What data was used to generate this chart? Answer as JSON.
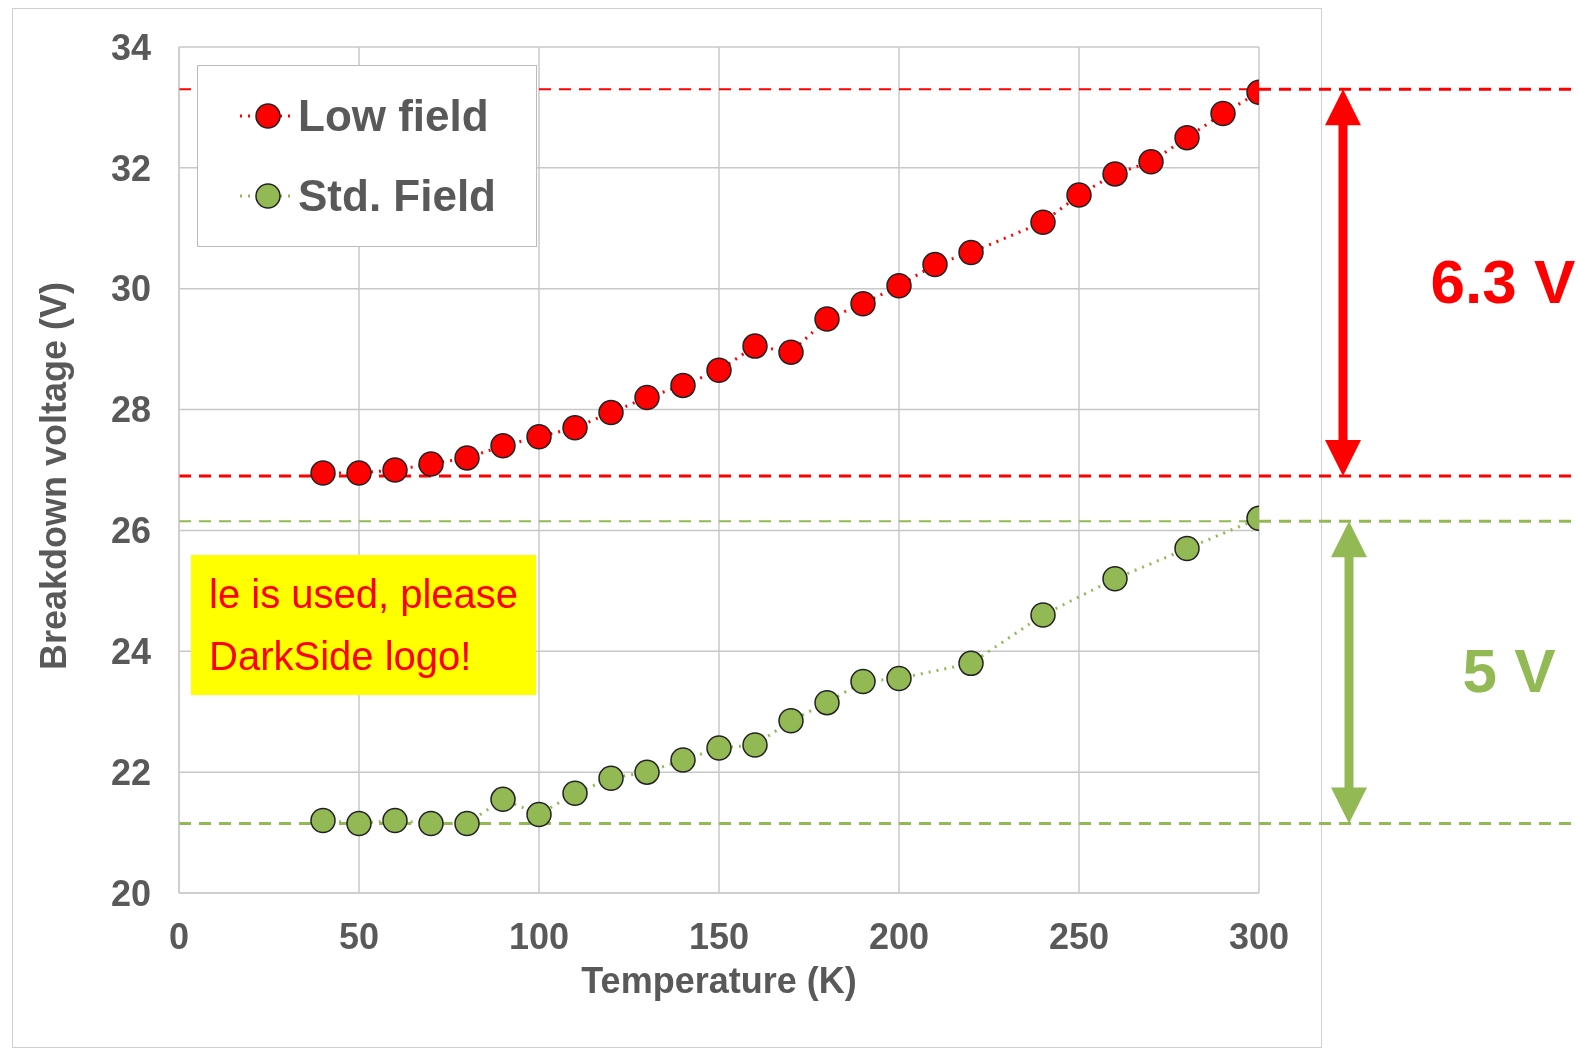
{
  "chart_data": {
    "type": "line",
    "xlabel": "Temperature (K)",
    "ylabel": "Breakdown voltage (V)",
    "xlim": [
      0,
      300
    ],
    "xticks": [
      0,
      50,
      100,
      150,
      200,
      250,
      300
    ],
    "ylim": [
      20,
      34
    ],
    "yticks": [
      20,
      22,
      24,
      26,
      28,
      30,
      32,
      34
    ],
    "grid": true,
    "legend": "top left",
    "marker": "circle",
    "line_style": "dotted",
    "series": [
      {
        "name": "Low field",
        "color": "#ff0000",
        "x": [
          40,
          50,
          60,
          70,
          80,
          90,
          100,
          110,
          120,
          130,
          140,
          150,
          160,
          170,
          180,
          190,
          200,
          210,
          220,
          240,
          250,
          260,
          270,
          280,
          290,
          300
        ],
        "values": [
          26.95,
          26.95,
          27.0,
          27.1,
          27.2,
          27.4,
          27.55,
          27.7,
          27.95,
          28.2,
          28.4,
          28.65,
          29.05,
          28.95,
          29.5,
          29.75,
          30.05,
          30.4,
          30.6,
          31.1,
          31.55,
          31.9,
          32.1,
          32.5,
          32.9,
          33.25
        ]
      },
      {
        "name": "Std. Field",
        "color": "#92b954",
        "x": [
          40,
          50,
          60,
          70,
          80,
          90,
          100,
          110,
          120,
          130,
          140,
          150,
          160,
          170,
          180,
          190,
          200,
          220,
          240,
          260,
          280,
          300
        ],
        "values": [
          21.2,
          21.15,
          21.2,
          21.15,
          21.15,
          21.55,
          21.3,
          21.65,
          21.9,
          22.0,
          22.2,
          22.4,
          22.45,
          22.85,
          23.15,
          23.5,
          23.55,
          23.8,
          24.6,
          25.2,
          25.7,
          26.2
        ]
      }
    ],
    "ref_lines": [
      {
        "axis": "y",
        "value": 26.9,
        "color": "#ff0000",
        "line_style": "dashed",
        "label": null
      },
      {
        "axis": "y",
        "value": 33.3,
        "color": "#ff0000",
        "line_style": "dashed",
        "label": null
      },
      {
        "axis": "y",
        "value": 21.15,
        "color": "#92b954",
        "line_style": "dashed",
        "label": null
      },
      {
        "axis": "y",
        "value": 26.15,
        "color": "#92b954",
        "line_style": "dashed",
        "label": null
      }
    ],
    "annotations": [
      "6.3 V",
      "5 V",
      "le is used, please\nDarkSide logo!"
    ]
  }
}
